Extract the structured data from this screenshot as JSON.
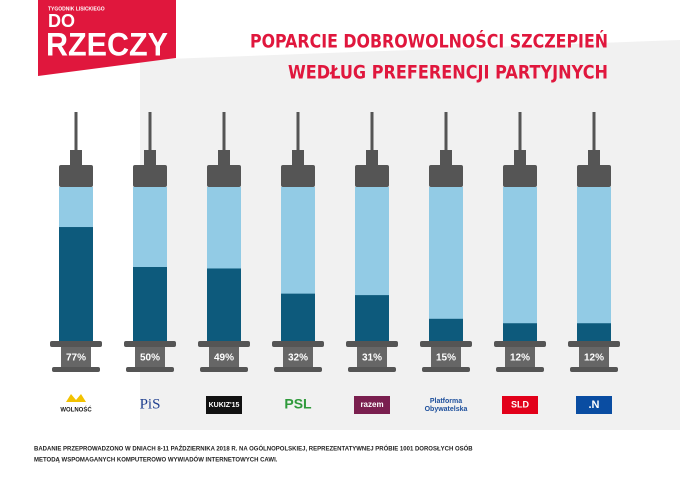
{
  "brand": {
    "kicker": "TYGODNIK LISICKIEGO",
    "name": [
      "DO",
      "RZECZY"
    ]
  },
  "chart_data": {
    "type": "bar",
    "title": [
      "POPARCIE DOBROWOLNOŚCI SZCZEPIEŃ",
      "WEDŁUG PREFERENCJI PARTYJNYCH"
    ],
    "categories": [
      "WOLNOŚĆ",
      "PiS",
      "KUKIZ'15",
      "PSL",
      "razem",
      [
        "Platforma",
        "Obywatelska"
      ],
      "SLD",
      ".N"
    ],
    "values": [
      77,
      50,
      49,
      32,
      31,
      15,
      12,
      12
    ],
    "value_labels": [
      "77%",
      "50%",
      "49%",
      "32%",
      "31%",
      "15%",
      "12%",
      "12%"
    ],
    "color": "#0d5a7c",
    "barrel_color": "#92cbe5",
    "ylim": [
      0,
      100
    ]
  },
  "footnote": [
    "BADANIE PRZEPROWADZONO W DNIACH 8-11 PAŹDZIERNIKA 2018 R. NA OGÓLNOPOLSKIEJ, REPREZENTATYWNEJ PRÓBIE 1001 DOROSŁYCH OSÓB",
    "METODĄ WSPOMAGANYCH KOMPUTEROWO WYWIADÓW INTERNETOWYCH CAWI."
  ]
}
